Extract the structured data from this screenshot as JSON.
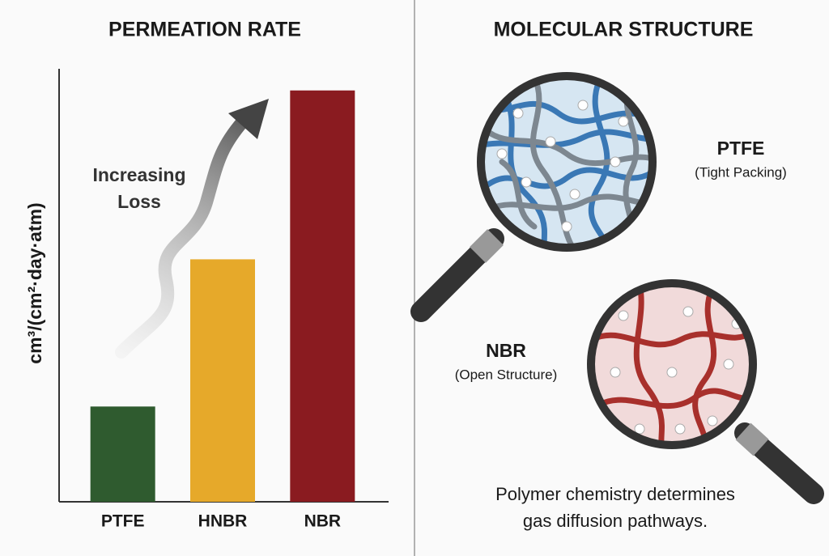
{
  "chart_data": {
    "type": "bar",
    "title": "PERMEATION RATE",
    "y_label": "cm³/(cm²·day·atm)",
    "categories": [
      "PTFE",
      "HNBR",
      "NBR"
    ],
    "values": [
      22,
      56,
      95
    ],
    "colors": [
      "#2f5b2f",
      "#e6a92a",
      "#8a1b20"
    ],
    "ylim": [
      0,
      100
    ],
    "annotation": [
      "Increasing",
      "Loss"
    ]
  },
  "molecular_structure": {
    "title": "MOLECULAR STRUCTURE",
    "items": [
      {
        "name": "PTFE",
        "note": "(Tight Packing)"
      },
      {
        "name": "NBR",
        "note": "(Open Structure)"
      }
    ],
    "caption": [
      "Polymer chemistry determines",
      "gas diffusion pathways."
    ]
  }
}
